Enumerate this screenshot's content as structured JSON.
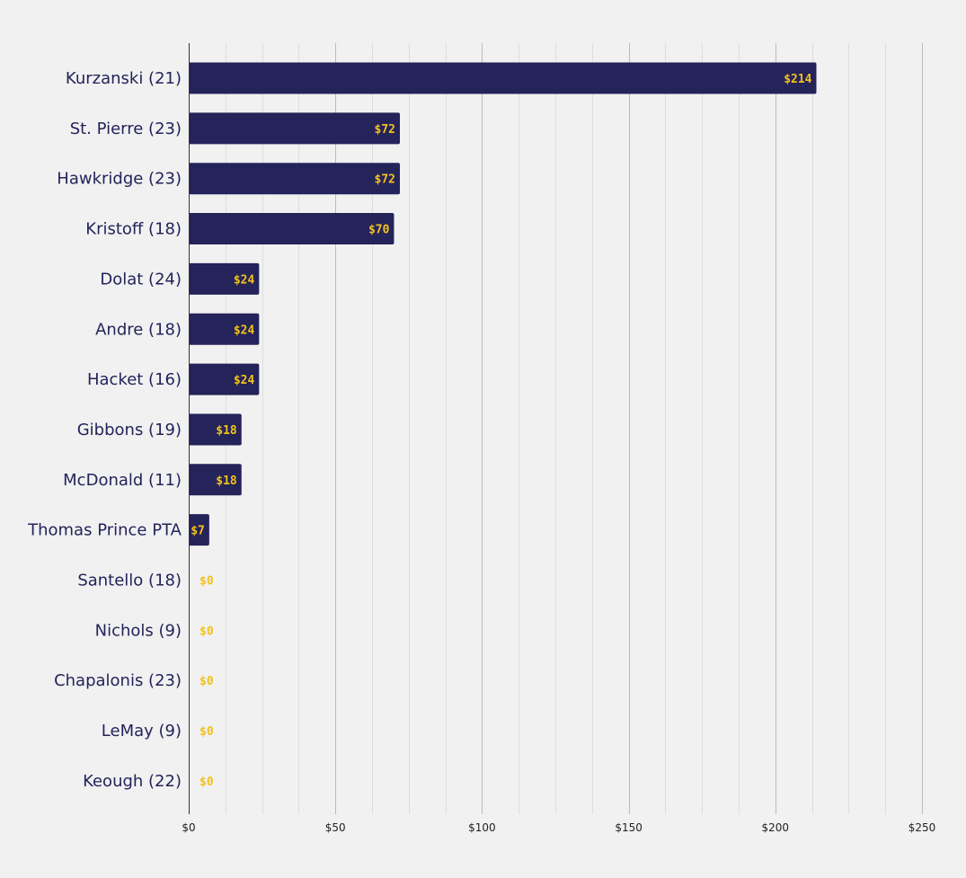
{
  "chart_data": {
    "type": "bar",
    "orientation": "horizontal",
    "categories": [
      "Kurzanski (21)",
      "St. Pierre (23)",
      "Hawkridge (23)",
      "Kristoff (18)",
      "Dolat (24)",
      "Andre (18)",
      "Hacket (16)",
      "Gibbons (19)",
      "McDonald (11)",
      "Thomas Prince PTA",
      "Santello (18)",
      "Nichols (9)",
      "Chapalonis (23)",
      "LeMay (9)",
      "Keough (22)"
    ],
    "values": [
      214,
      72,
      72,
      70,
      24,
      24,
      24,
      18,
      18,
      7,
      0,
      0,
      0,
      0,
      0
    ],
    "value_labels": [
      "$214",
      "$72",
      "$72",
      "$70",
      "$24",
      "$24",
      "$24",
      "$18",
      "$18",
      "$7",
      "$0",
      "$0",
      "$0",
      "$0",
      "$0"
    ],
    "x_ticks": [
      0,
      50,
      100,
      150,
      200,
      250
    ],
    "x_tick_labels": [
      "$0",
      "$50",
      "$100",
      "$150",
      "$200",
      "$250"
    ],
    "xlim": [
      0,
      250
    ],
    "minor_gridlines": true,
    "title": "",
    "xlabel": "",
    "ylabel": "",
    "colors": {
      "bar": "#24235a",
      "value_label": "#f2c21a",
      "category_label": "#24235a",
      "background": "#f1f1f1",
      "grid_major": "#bcbcbc",
      "grid_minor": "#dedede",
      "axis": "#333333"
    }
  }
}
